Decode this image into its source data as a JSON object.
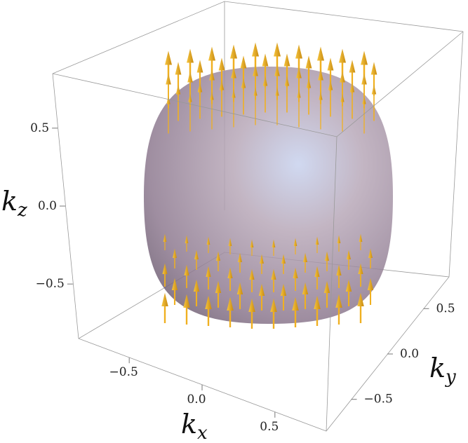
{
  "chart_data": {
    "type": "vector3d",
    "xlabel": {
      "symbol": "k",
      "subscript": "x"
    },
    "ylabel": {
      "symbol": "k",
      "subscript": "y"
    },
    "zlabel": {
      "symbol": "k",
      "subscript": "z"
    },
    "xlim": [
      -0.85,
      0.85
    ],
    "ylim": [
      -0.85,
      0.85
    ],
    "zlim": [
      -0.85,
      0.85
    ],
    "xticks": [
      {
        "value": -0.5,
        "label": "−0.5"
      },
      {
        "value": 0,
        "label": "0.0"
      },
      0.5
    ],
    "yticks": [
      {
        "value": -0.5,
        "label": "−0.5"
      },
      {
        "value": 0,
        "label": "0.0"
      },
      0.5
    ],
    "zticks": [
      {
        "value": -0.5,
        "label": "−0.5"
      },
      {
        "value": 0,
        "label": "0.0"
      },
      0.5
    ],
    "color": "#f0b020"
  }
}
